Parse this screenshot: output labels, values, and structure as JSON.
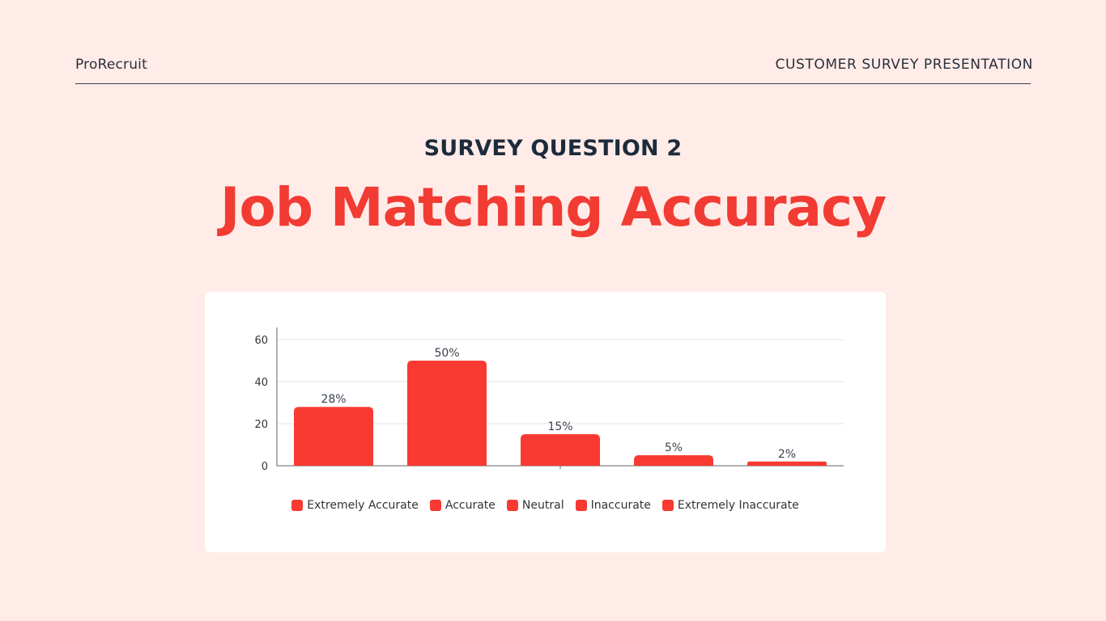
{
  "header": {
    "brand": "ProRecruit",
    "deck_title": "CUSTOMER SURVEY PRESENTATION"
  },
  "slide": {
    "question": "SURVEY QUESTION 2",
    "headline": "Job Matching Accuracy"
  },
  "colors": {
    "background": "#ffece8",
    "accent": "#f23b33",
    "bar": "#f83a32"
  },
  "chart_data": {
    "type": "bar",
    "categories": [
      "Extremely Accurate",
      "Accurate",
      "Neutral",
      "Inaccurate",
      "Extremely Inaccurate"
    ],
    "values": [
      28,
      50,
      15,
      5,
      2
    ],
    "data_labels": [
      "28%",
      "50%",
      "15%",
      "5%",
      "2%"
    ],
    "ylim": [
      0,
      60
    ],
    "yticks": [
      0,
      20,
      40,
      60
    ],
    "grid": true,
    "legend_position": "bottom",
    "legend": [
      "Extremely Accurate",
      "Accurate",
      "Neutral",
      "Inaccurate",
      "Extremely Inaccurate"
    ]
  }
}
